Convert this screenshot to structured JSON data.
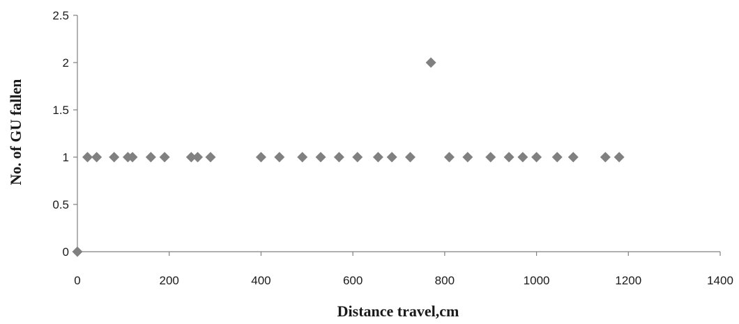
{
  "chart_data": {
    "type": "scatter",
    "title": "",
    "xlabel": "Distance travel,cm",
    "ylabel": "No. of GU fallen",
    "xlim": [
      0,
      1400
    ],
    "ylim": [
      0,
      2.5
    ],
    "x_ticks": [
      0,
      200,
      400,
      600,
      800,
      1000,
      1200,
      1400
    ],
    "y_ticks": [
      "0",
      "0.5",
      "1",
      "1.5",
      "2",
      "2.5"
    ],
    "grid": false,
    "legend": "none",
    "marker": "diamond",
    "marker_color": "#808080",
    "points": [
      {
        "x": 0,
        "y": 0
      },
      {
        "x": 22,
        "y": 1
      },
      {
        "x": 42,
        "y": 1
      },
      {
        "x": 80,
        "y": 1
      },
      {
        "x": 110,
        "y": 1
      },
      {
        "x": 120,
        "y": 1
      },
      {
        "x": 160,
        "y": 1
      },
      {
        "x": 190,
        "y": 1
      },
      {
        "x": 248,
        "y": 1
      },
      {
        "x": 262,
        "y": 1
      },
      {
        "x": 290,
        "y": 1
      },
      {
        "x": 400,
        "y": 1
      },
      {
        "x": 440,
        "y": 1
      },
      {
        "x": 490,
        "y": 1
      },
      {
        "x": 530,
        "y": 1
      },
      {
        "x": 570,
        "y": 1
      },
      {
        "x": 610,
        "y": 1
      },
      {
        "x": 655,
        "y": 1
      },
      {
        "x": 685,
        "y": 1
      },
      {
        "x": 725,
        "y": 1
      },
      {
        "x": 770,
        "y": 2
      },
      {
        "x": 810,
        "y": 1
      },
      {
        "x": 850,
        "y": 1
      },
      {
        "x": 900,
        "y": 1
      },
      {
        "x": 940,
        "y": 1
      },
      {
        "x": 970,
        "y": 1
      },
      {
        "x": 1000,
        "y": 1
      },
      {
        "x": 1045,
        "y": 1
      },
      {
        "x": 1080,
        "y": 1
      },
      {
        "x": 1150,
        "y": 1
      },
      {
        "x": 1180,
        "y": 1
      }
    ]
  }
}
